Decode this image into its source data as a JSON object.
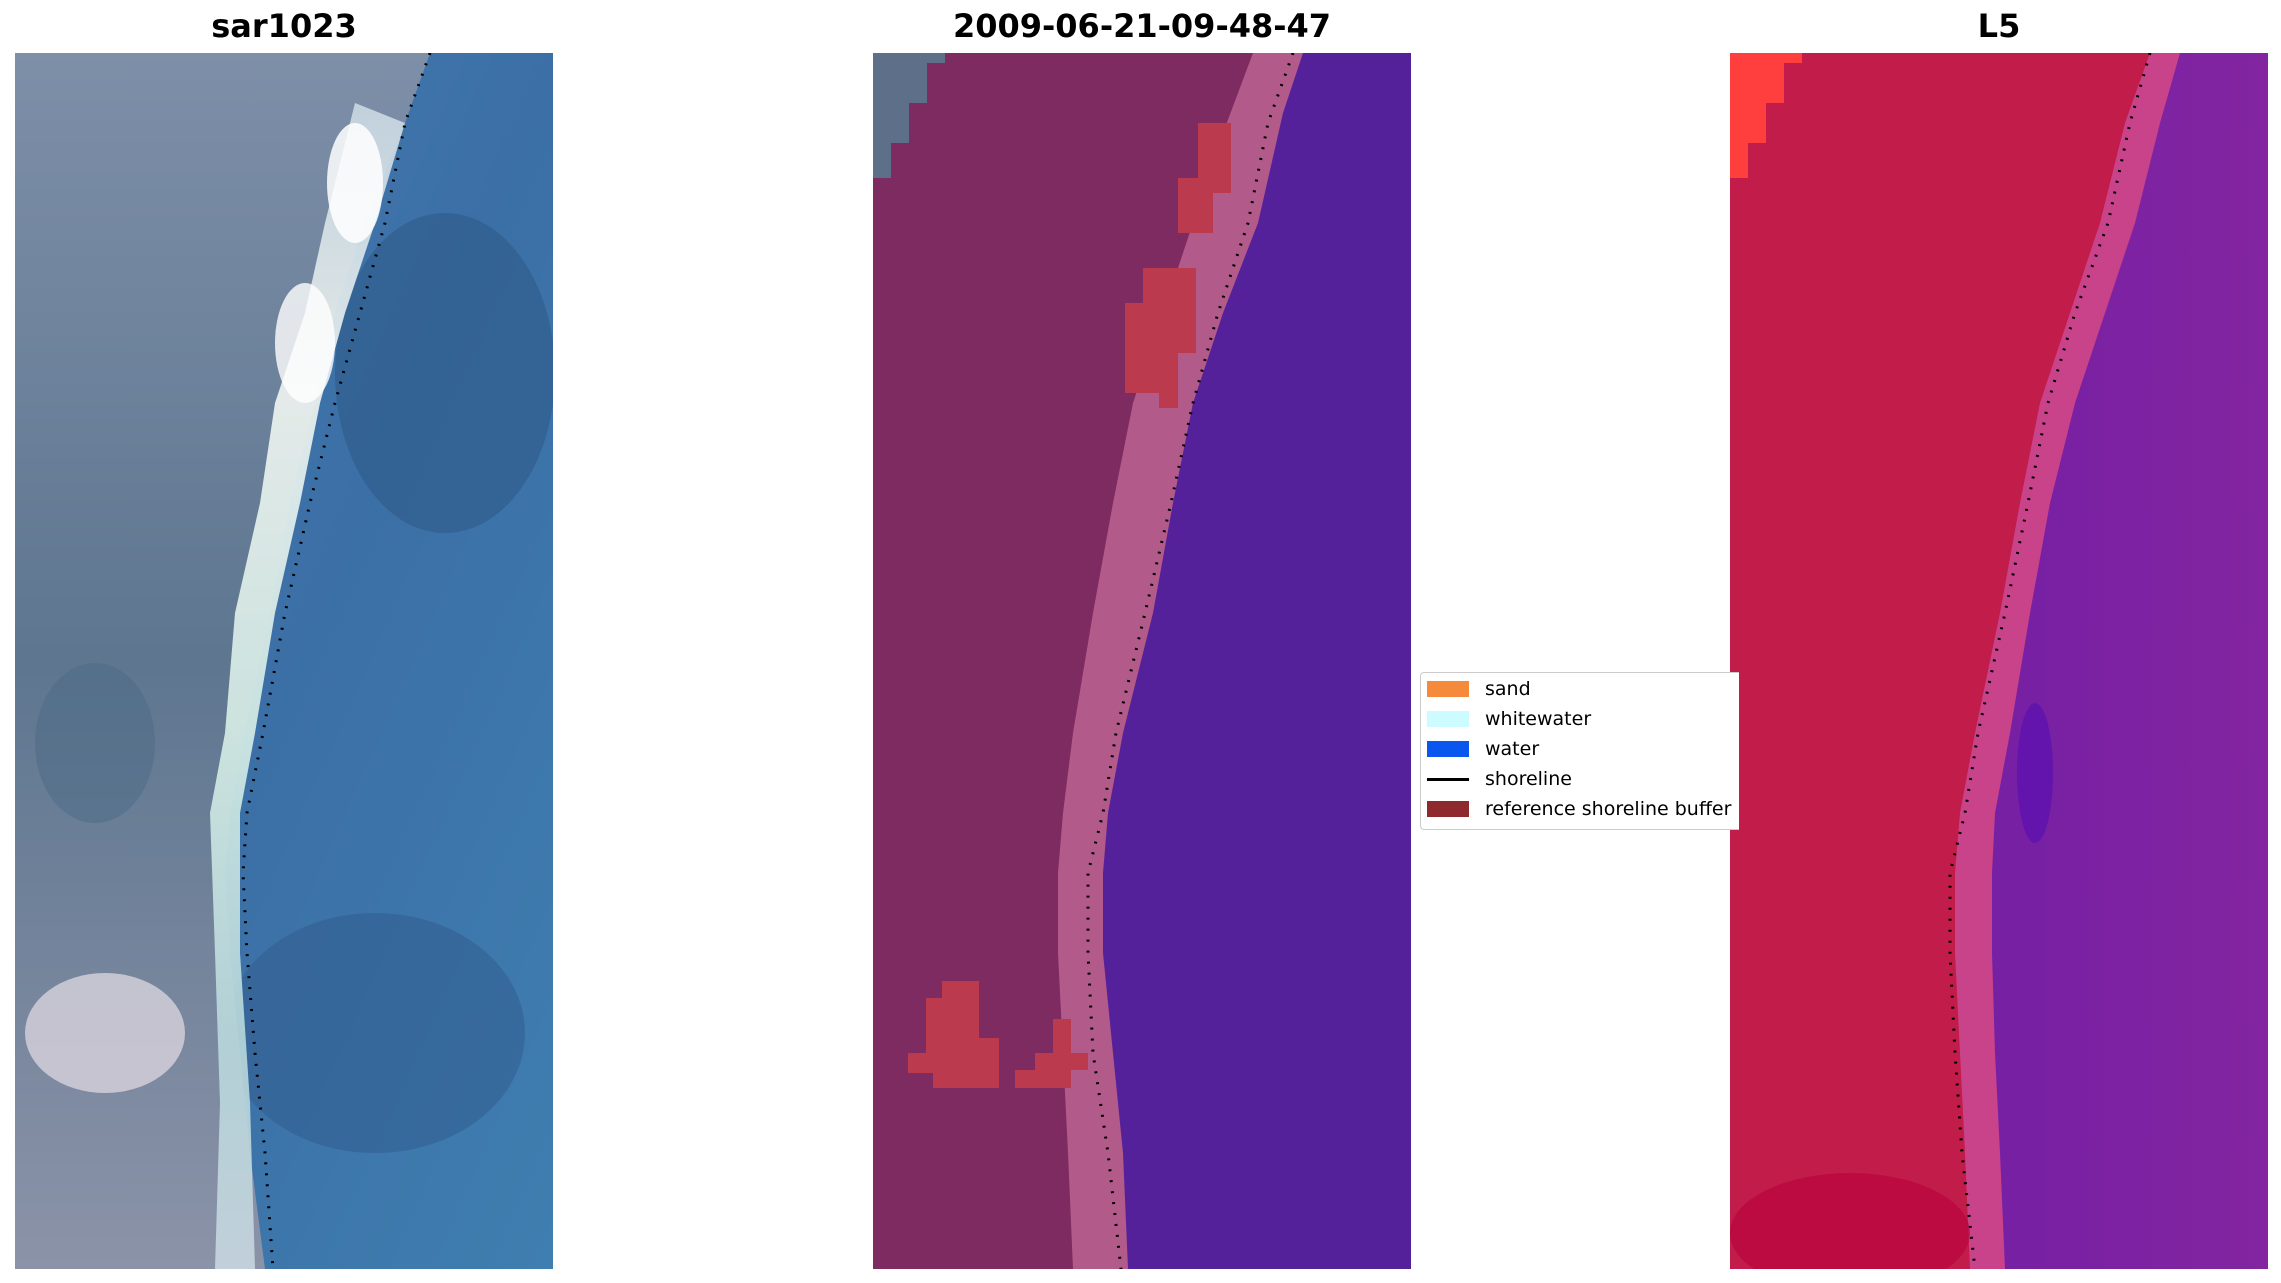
{
  "panels": [
    {
      "title": "sar1023"
    },
    {
      "title": "2009-06-21-09-48-47"
    },
    {
      "title": "L5"
    }
  ],
  "legend": {
    "items": [
      {
        "label": "sand",
        "color": "#f58a3a"
      },
      {
        "label": "whitewater",
        "color": "#ccfcff"
      },
      {
        "label": "water",
        "color": "#0a57f0"
      },
      {
        "label": "shoreline",
        "color": "#000000",
        "kind": "line"
      },
      {
        "label": "reference shoreline buffer",
        "color": "#8e2a2e"
      }
    ]
  },
  "colors": {
    "rgb_water": "#3f7fb0",
    "rgb_land": "#6b8097",
    "rgb_whitewater": "#eef4f2",
    "class_land": "#7e2b62",
    "class_buffer": "#b25a8a",
    "class_water": "#55219b",
    "class_red_patch": "#bb3a4d",
    "l5_land": "#c21c4b",
    "l5_water": "#7f22a0"
  }
}
